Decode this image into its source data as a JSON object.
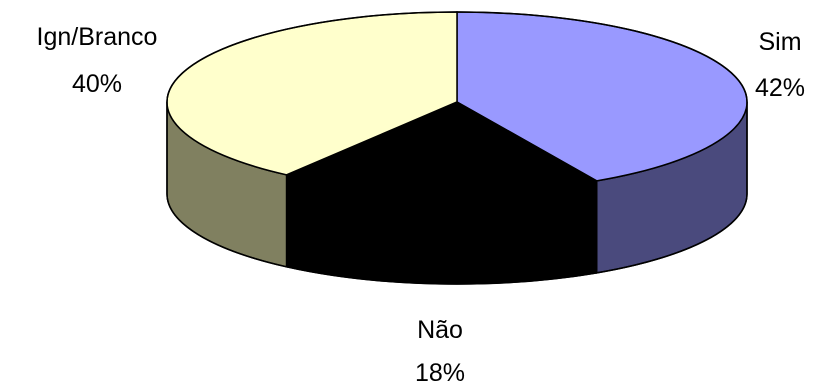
{
  "chart_data": {
    "type": "pie",
    "style": "3d",
    "slices": [
      {
        "label": "Sim",
        "percent_label": "42%",
        "value": 42,
        "color": "#9999ff",
        "side_color": "#4a4a7d"
      },
      {
        "label": "Não",
        "percent_label": "18%",
        "value": 18,
        "color": "#000000",
        "side_color": "#000000"
      },
      {
        "label": "Ign/Branco",
        "percent_label": "40%",
        "value": 40,
        "color": "#ffffcc",
        "side_color": "#808060"
      }
    ]
  }
}
